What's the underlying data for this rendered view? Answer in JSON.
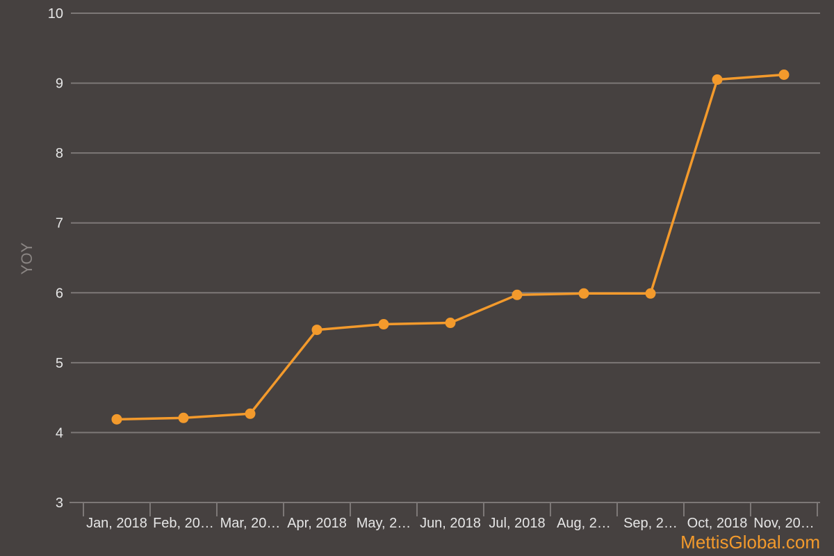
{
  "chart_data": {
    "type": "line",
    "title": "",
    "xlabel": "",
    "ylabel": "YOY",
    "ylim": [
      3,
      10
    ],
    "yticks": [
      3,
      4,
      5,
      6,
      7,
      8,
      9,
      10
    ],
    "grid": true,
    "categories": [
      "Jan, 2018",
      "Feb, 20…",
      "Mar, 20…",
      "Apr, 2018",
      "May, 2…",
      "Jun, 2018",
      "Jul, 2018",
      "Aug, 2…",
      "Sep, 2…",
      "Oct, 2018",
      "Nov, 20…"
    ],
    "series": [
      {
        "values": [
          4.19,
          4.21,
          4.27,
          5.47,
          5.55,
          5.57,
          5.97,
          5.99,
          5.99,
          9.05,
          9.12
        ]
      }
    ],
    "colors": {
      "background": "#464140",
      "line": "#f39a2c",
      "grid": "#7d7877"
    }
  },
  "watermark": "MettisGlobal.com"
}
